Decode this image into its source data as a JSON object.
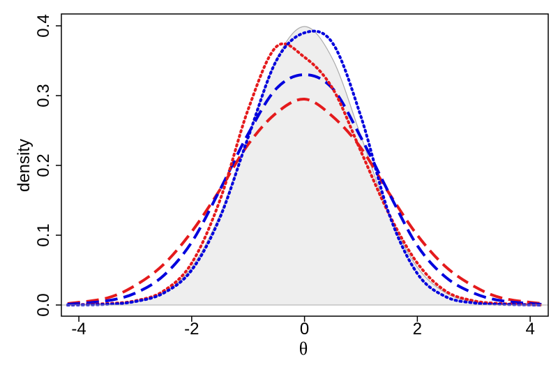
{
  "chart_data": {
    "type": "line",
    "xlabel": "θ",
    "ylabel": "density",
    "x": [
      -4.2,
      -3.5,
      -3,
      -2.5,
      -2,
      -1.5,
      -1,
      -0.5,
      0,
      0.5,
      1,
      1.5,
      2,
      2.5,
      3,
      3.5,
      4.2
    ],
    "series": [
      {
        "style": "area",
        "color": "#aaaaaa",
        "fill": "#eeeeee",
        "values": [
          0.0001,
          0.0009,
          0.0044,
          0.0175,
          0.054,
          0.1295,
          0.242,
          0.352,
          0.399,
          0.352,
          0.242,
          0.1295,
          0.054,
          0.0175,
          0.0044,
          0.0009,
          0.0001
        ]
      },
      {
        "style": "dashed",
        "color": "#e41a1c",
        "values": [
          0.002,
          0.01,
          0.028,
          0.058,
          0.105,
          0.165,
          0.23,
          0.275,
          0.295,
          0.27,
          0.225,
          0.16,
          0.1,
          0.055,
          0.027,
          0.01,
          0.002
        ]
      },
      {
        "style": "dashed",
        "color": "#0000dd",
        "values": [
          0.001,
          0.006,
          0.017,
          0.042,
          0.09,
          0.165,
          0.245,
          0.31,
          0.33,
          0.31,
          0.24,
          0.16,
          0.085,
          0.04,
          0.017,
          0.006,
          0.001
        ]
      },
      {
        "style": "dotted",
        "color": "#e41a1c",
        "values": [
          0,
          0.002,
          0.006,
          0.02,
          0.06,
          0.15,
          0.28,
          0.37,
          0.355,
          0.31,
          0.22,
          0.13,
          0.06,
          0.02,
          0.006,
          0.002,
          0
        ]
      },
      {
        "style": "dotted",
        "color": "#0000dd",
        "values": [
          0,
          0.001,
          0.005,
          0.017,
          0.05,
          0.125,
          0.24,
          0.35,
          0.39,
          0.375,
          0.27,
          0.13,
          0.045,
          0.012,
          0.003,
          0.001,
          0
        ]
      }
    ],
    "xlim": [
      -4.31,
      4.32
    ],
    "xticks": [
      -4,
      -2,
      0,
      2,
      4
    ],
    "ylim": [
      -0.016,
      0.417
    ],
    "yticks": [
      {
        "value": 0,
        "label": "0.0"
      },
      0.1,
      0.2,
      0.3,
      0.4
    ]
  }
}
